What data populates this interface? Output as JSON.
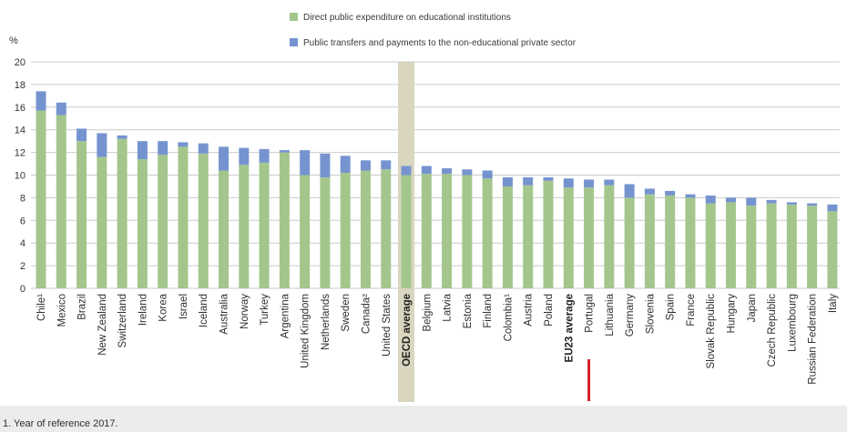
{
  "chart_data": {
    "type": "bar",
    "stacked": true,
    "categories": [
      "Chile¹",
      "Mexico",
      "Brazil",
      "New Zealand",
      "Switzerland",
      "Ireland",
      "Korea",
      "Israel",
      "Iceland",
      "Australia",
      "Norway",
      "Turkey",
      "Argentina",
      "United Kingdom",
      "Netherlands",
      "Sweden",
      "Canada²",
      "United States",
      "OECD average",
      "Belgium",
      "Latvia",
      "Estonia",
      "Finland",
      "Colombia¹",
      "Austria",
      "Poland",
      "EU23 average",
      "Portugal",
      "Lithuania",
      "Germany",
      "Slovenia",
      "Spain",
      "France",
      "Slovak Republic",
      "Hungary",
      "Japan",
      "Czech Republic",
      "Luxembourg",
      "Russian Federation",
      "Italy"
    ],
    "series": [
      {
        "name": "Direct public expenditure on educational institutions",
        "color": "#a4c68d",
        "values": [
          15.7,
          15.3,
          13.0,
          11.6,
          13.2,
          11.4,
          11.8,
          12.5,
          11.9,
          10.4,
          10.9,
          11.1,
          12.0,
          10.0,
          9.8,
          10.2,
          10.4,
          10.5,
          10.0,
          10.1,
          10.1,
          10.0,
          9.7,
          9.0,
          9.1,
          9.5,
          8.9,
          8.9,
          9.1,
          8.0,
          8.3,
          8.2,
          8.0,
          7.5,
          7.6,
          7.3,
          7.5,
          7.4,
          7.3,
          6.8
        ]
      },
      {
        "name": "Public transfers and payments to the non-educational private sector",
        "color": "#7594cf",
        "values": [
          1.7,
          1.1,
          1.1,
          2.1,
          0.3,
          1.6,
          1.2,
          0.4,
          0.9,
          2.1,
          1.5,
          1.2,
          0.2,
          2.2,
          2.1,
          1.5,
          0.9,
          0.8,
          0.8,
          0.7,
          0.5,
          0.5,
          0.7,
          0.8,
          0.7,
          0.3,
          0.8,
          0.7,
          0.5,
          1.2,
          0.5,
          0.4,
          0.3,
          0.7,
          0.4,
          0.7,
          0.3,
          0.2,
          0.2,
          0.6
        ]
      }
    ],
    "ylabel": "%",
    "ylim": [
      0,
      20
    ],
    "yticks": [
      0,
      2,
      4,
      6,
      8,
      10,
      12,
      14,
      16,
      18,
      20
    ],
    "grid": true,
    "legend": "top-center",
    "bold_categories": [
      "OECD average",
      "EU23 average"
    ],
    "shaded_category": "OECD average",
    "shade_color": "#d9d5bf",
    "marked_category": "Portugal",
    "marker_color": "#d41f2c",
    "text_color": "#333333"
  },
  "footnote": "1. Year of reference 2017.",
  "footnote_band_color": "#ececea"
}
